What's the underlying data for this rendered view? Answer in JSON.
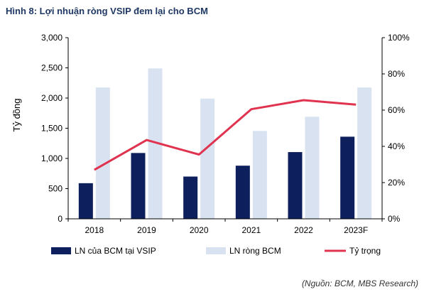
{
  "title": "Hình 8: Lợi nhuận ròng VSIP đem lại cho BCM",
  "source": "(Nguồn: BCM, MBS Research)",
  "chart_data": {
    "type": "bar",
    "categories": [
      "2018",
      "2019",
      "2020",
      "2021",
      "2022",
      "2023F"
    ],
    "series": [
      {
        "name": "LN của BCM tại VSIP",
        "type": "bar",
        "axis": "left",
        "color": "#0d1f5c",
        "values": [
          590,
          1090,
          700,
          880,
          1105,
          1360
        ]
      },
      {
        "name": "LN ròng BCM",
        "type": "bar",
        "axis": "left",
        "color": "#d9e2f1",
        "values": [
          2175,
          2490,
          1990,
          1455,
          1690,
          2175
        ]
      },
      {
        "name": "Tỷ trọng",
        "type": "line",
        "axis": "right",
        "color": "#e0334f",
        "values": [
          27,
          43.5,
          35.5,
          60.5,
          65.5,
          63
        ]
      }
    ],
    "ylabel": "Tỷ đồng",
    "ylim": [
      0,
      3000
    ],
    "yticks": [
      "0",
      "500",
      "1,000",
      "1,500",
      "2,000",
      "2,500",
      "3,000"
    ],
    "y2lim": [
      0,
      100
    ],
    "y2ticks": [
      "0%",
      "20%",
      "40%",
      "60%",
      "80%",
      "100%"
    ],
    "grid": false,
    "legend_position": "bottom"
  }
}
